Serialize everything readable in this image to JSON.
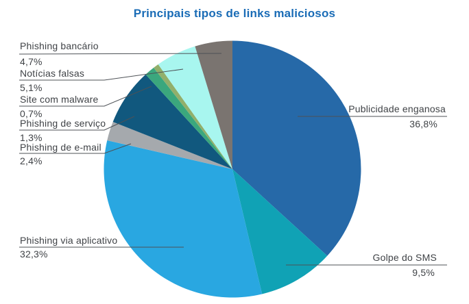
{
  "title": "Principais tipos de links maliciosos",
  "chart_data": {
    "type": "pie",
    "title": "Principais tipos de links maliciosos",
    "unit": "%",
    "direction": "clockwise",
    "start_angle_deg": 0,
    "slices": [
      {
        "label": "Publicidade enganosa",
        "value": 36.8,
        "display": "36,8%",
        "color": "#2669a8"
      },
      {
        "label": "Golpe do SMS",
        "value": 9.5,
        "display": "9,5%",
        "color": "#10a2b5"
      },
      {
        "label": "Phishing via aplicativo",
        "value": 32.3,
        "display": "32,3%",
        "color": "#29a7e1"
      },
      {
        "label": "Phishing de e-mail",
        "value": 2.4,
        "display": "2,4%",
        "color": "#a5a9ad"
      },
      {
        "label": "",
        "value": 7.2,
        "display": "",
        "color": "#11587e"
      },
      {
        "label": "Phishing de serviço",
        "value": 1.3,
        "display": "1,3%",
        "color": "#3ba77d"
      },
      {
        "label": "Site com malware",
        "value": 0.7,
        "display": "0,7%",
        "color": "#92af6b"
      },
      {
        "label": "Notícias falsas",
        "value": 5.1,
        "display": "5,1%",
        "color": "#a8f6ef"
      },
      {
        "label": "Phishing bancário",
        "value": 4.7,
        "display": "4,7%",
        "color": "#7a7470"
      }
    ]
  }
}
